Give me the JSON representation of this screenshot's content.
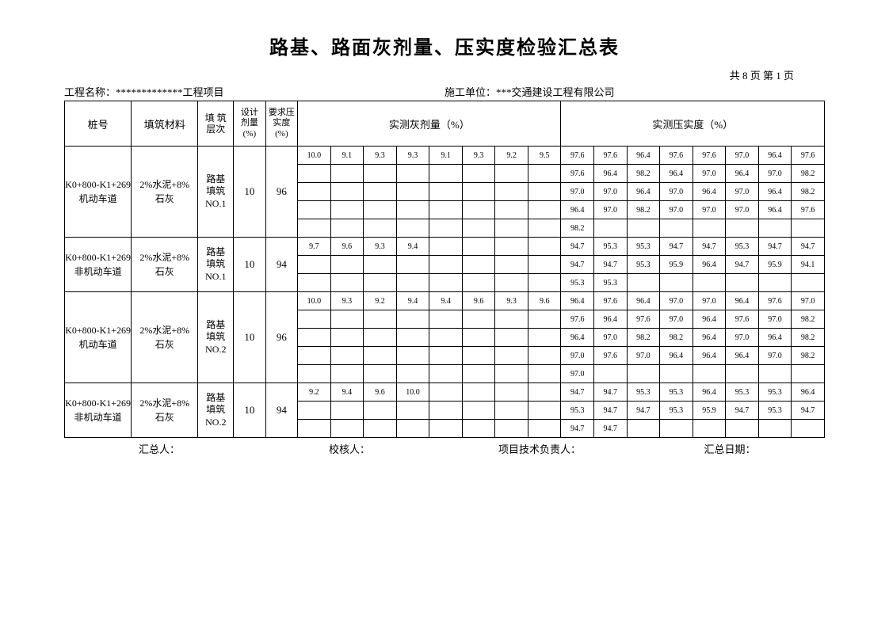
{
  "title": "路基、路面灰剂量、压实度检验汇总表",
  "paging": "共 8 页  第 1 页",
  "info": {
    "project_label": "工程名称：",
    "project_value": "*************工程项目",
    "unit_label": "施工单位：",
    "unit_value": "***交通建设工程有限公司"
  },
  "headers": {
    "pile": "桩号",
    "material": "填筑材料",
    "layer": "填 筑\n层次",
    "design": "设计\n剂量\n(%)",
    "req": "要求压\n实度\n(%)",
    "gray": "实测灰剂量（%）",
    "comp": "实测压实度（%）"
  },
  "blocks": [
    {
      "pile": "K0+800-K1+269\n机动车道",
      "material": "2%水泥+8%\n石灰",
      "layer": "路基\n填筑\nNO.1",
      "design": "10",
      "req": "96",
      "rows": 5,
      "gray": [
        [
          "10.0",
          "9.1",
          "9.3",
          "9.3",
          "9.1",
          "9.3",
          "9.2",
          "9.5"
        ],
        [
          "",
          "",
          "",
          "",
          "",
          "",
          "",
          ""
        ],
        [
          "",
          "",
          "",
          "",
          "",
          "",
          "",
          ""
        ],
        [
          "",
          "",
          "",
          "",
          "",
          "",
          "",
          ""
        ],
        [
          "",
          "",
          "",
          "",
          "",
          "",
          "",
          ""
        ]
      ],
      "comp": [
        [
          "97.6",
          "97.6",
          "96.4",
          "97.6",
          "97.6",
          "97.0",
          "96.4",
          "97.6"
        ],
        [
          "97.6",
          "96.4",
          "98.2",
          "96.4",
          "97.0",
          "96.4",
          "97.0",
          "98.2"
        ],
        [
          "97.0",
          "97.0",
          "96.4",
          "97.0",
          "96.4",
          "97.0",
          "96.4",
          "98.2"
        ],
        [
          "96.4",
          "97.0",
          "98.2",
          "97.0",
          "97.0",
          "97.0",
          "96.4",
          "97.6"
        ],
        [
          "98.2",
          "",
          "",
          "",
          "",
          "",
          "",
          ""
        ]
      ]
    },
    {
      "pile": "K0+800-K1+269\n非机动车道",
      "material": "2%水泥+8%\n石灰",
      "layer": "路基\n填筑\nNO.1",
      "design": "10",
      "req": "94",
      "rows": 3,
      "gray": [
        [
          "9.7",
          "9.6",
          "9.3",
          "9.4",
          "",
          "",
          "",
          ""
        ],
        [
          "",
          "",
          "",
          "",
          "",
          "",
          "",
          ""
        ],
        [
          "",
          "",
          "",
          "",
          "",
          "",
          "",
          ""
        ]
      ],
      "comp": [
        [
          "94.7",
          "95.3",
          "95.3",
          "94.7",
          "94.7",
          "95.3",
          "94.7",
          "94.7"
        ],
        [
          "94.7",
          "94.7",
          "95.3",
          "95.9",
          "96.4",
          "94.7",
          "95.9",
          "94.1"
        ],
        [
          "95.3",
          "95.3",
          "",
          "",
          "",
          "",
          "",
          ""
        ]
      ]
    },
    {
      "pile": "K0+800-K1+269\n机动车道",
      "material": "2%水泥+8%\n石灰",
      "layer": "路基\n填筑\nNO.2",
      "design": "10",
      "req": "96",
      "rows": 5,
      "gray": [
        [
          "10.0",
          "9.3",
          "9.2",
          "9.4",
          "9.4",
          "9.6",
          "9.3",
          "9.6"
        ],
        [
          "",
          "",
          "",
          "",
          "",
          "",
          "",
          ""
        ],
        [
          "",
          "",
          "",
          "",
          "",
          "",
          "",
          ""
        ],
        [
          "",
          "",
          "",
          "",
          "",
          "",
          "",
          ""
        ],
        [
          "",
          "",
          "",
          "",
          "",
          "",
          "",
          ""
        ]
      ],
      "comp": [
        [
          "96.4",
          "97.6",
          "96.4",
          "97.0",
          "97.0",
          "96.4",
          "97.6",
          "97.0"
        ],
        [
          "97.6",
          "96.4",
          "97.6",
          "97.0",
          "96.4",
          "97.6",
          "97.0",
          "98.2"
        ],
        [
          "96.4",
          "97.0",
          "98.2",
          "98.2",
          "96.4",
          "97.0",
          "96.4",
          "98.2"
        ],
        [
          "97.0",
          "97.6",
          "97.0",
          "96.4",
          "96.4",
          "96.4",
          "97.0",
          "98.2"
        ],
        [
          "97.0",
          "",
          "",
          "",
          "",
          "",
          "",
          ""
        ]
      ]
    },
    {
      "pile": "K0+800-K1+269\n非机动车道",
      "material": "2%水泥+8%\n石灰",
      "layer": "路基\n填筑\nNO.2",
      "design": "10",
      "req": "94",
      "rows": 3,
      "gray": [
        [
          "9.2",
          "9.4",
          "9.6",
          "10.0",
          "",
          "",
          "",
          ""
        ],
        [
          "",
          "",
          "",
          "",
          "",
          "",
          "",
          ""
        ],
        [
          "",
          "",
          "",
          "",
          "",
          "",
          "",
          ""
        ]
      ],
      "comp": [
        [
          "94.7",
          "94.7",
          "95.3",
          "95.3",
          "96.4",
          "95.3",
          "95.3",
          "96.4"
        ],
        [
          "95.3",
          "94.7",
          "94.7",
          "95.3",
          "95.9",
          "94.7",
          "95.3",
          "94.7"
        ],
        [
          "94.7",
          "94.7",
          "",
          "",
          "",
          "",
          "",
          ""
        ]
      ]
    }
  ],
  "footer": {
    "summarizer": "汇总人：",
    "checker": "校核人：",
    "tech": "项目技术负责人：",
    "date": "汇总日期："
  }
}
